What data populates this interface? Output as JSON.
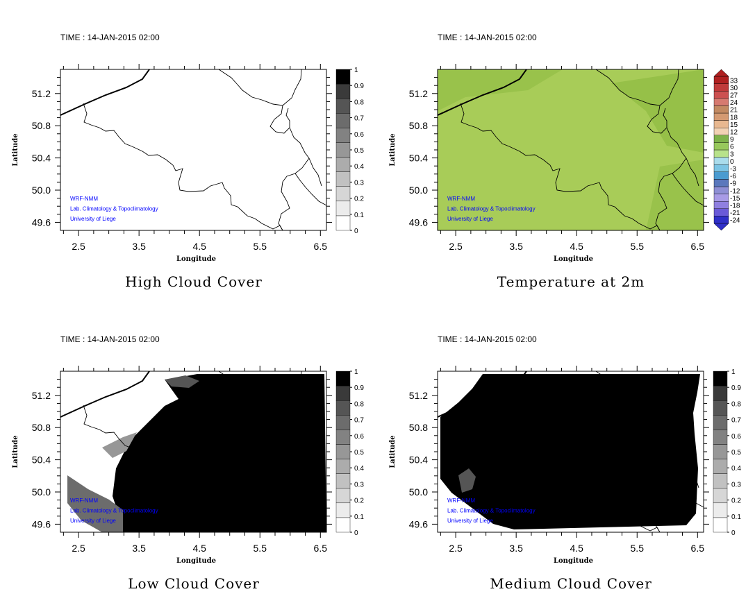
{
  "time_label": "TIME : 14-JAN-2015 02:00",
  "credits": [
    "WRF-NMM",
    "Lab. Climatology & Topoclimatology",
    "University of Liege"
  ],
  "colors": {
    "credit_text": "#0000ff",
    "temperature_fill": "#a8cc58",
    "temperature_fill_dark": "#8fbb42",
    "cloud_dark": "#000000"
  },
  "chart_data": [
    {
      "type": "heatmap",
      "title": "High Cloud Cover",
      "xlabel": "Longitude",
      "ylabel": "Latitude",
      "xlim": [
        2.2,
        6.6
      ],
      "ylim": [
        49.5,
        51.5
      ],
      "x_ticks": [
        "2.5",
        "3.5",
        "4.5",
        "5.5",
        "6.5"
      ],
      "y_ticks": [
        "49.6",
        "50.0",
        "50.4",
        "50.8",
        "51.2"
      ],
      "colorbar": {
        "labels": [
          "0",
          "0.1",
          "0.2",
          "0.3",
          "0.4",
          "0.5",
          "0.6",
          "0.7",
          "0.8",
          "0.9",
          "1"
        ],
        "colors": [
          "#ffffff",
          "#ececec",
          "#d6d6d6",
          "#c1c1c1",
          "#acacac",
          "#979797",
          "#828282",
          "#6c6c6c",
          "#555555",
          "#3a3a3a",
          "#000000"
        ]
      },
      "field": "none"
    },
    {
      "type": "heatmap",
      "title": "Temperature at 2m",
      "xlabel": "Longitude",
      "ylabel": "Latitude",
      "xlim": [
        2.2,
        6.6
      ],
      "ylim": [
        49.5,
        51.5
      ],
      "x_ticks": [
        "2.5",
        "3.5",
        "4.5",
        "5.5",
        "6.5"
      ],
      "y_ticks": [
        "49.6",
        "50.0",
        "50.4",
        "50.8",
        "51.2"
      ],
      "colorbar": {
        "labels": [
          "-24",
          "-21",
          "-18",
          "-15",
          "-12",
          "-9",
          "-6",
          "-3",
          "0",
          "3",
          "6",
          "9",
          "12",
          "15",
          "18",
          "21",
          "24",
          "27",
          "30",
          "33"
        ],
        "colors": [
          "#2f2fc8",
          "#6a5ad8",
          "#8f7fe0",
          "#a89be6",
          "#8e8fd4",
          "#5a78bc",
          "#4a9bd0",
          "#7cc4e4",
          "#aadcec",
          "#b8e28a",
          "#98c85c",
          "#7eb24a",
          "#f2d2b4",
          "#e8b890",
          "#d49a72",
          "#c28a62",
          "#d67a70",
          "#cc5050",
          "#c03a3a",
          "#b02020"
        ]
      },
      "field": "temperature"
    },
    {
      "type": "heatmap",
      "title": "Low Cloud Cover",
      "xlabel": "Longitude",
      "ylabel": "Latitude",
      "xlim": [
        2.2,
        6.6
      ],
      "ylim": [
        49.5,
        51.5
      ],
      "x_ticks": [
        "2.5",
        "3.5",
        "4.5",
        "5.5",
        "6.5"
      ],
      "y_ticks": [
        "49.6",
        "50.0",
        "50.4",
        "50.8",
        "51.2"
      ],
      "colorbar": {
        "labels": [
          "0",
          "0.1",
          "0.2",
          "0.3",
          "0.4",
          "0.5",
          "0.6",
          "0.7",
          "0.8",
          "0.9",
          "1"
        ],
        "colors": [
          "#ffffff",
          "#ececec",
          "#d6d6d6",
          "#c1c1c1",
          "#acacac",
          "#979797",
          "#828282",
          "#6c6c6c",
          "#555555",
          "#3a3a3a",
          "#000000"
        ]
      },
      "field": "low"
    },
    {
      "type": "heatmap",
      "title": "Medium Cloud Cover",
      "xlabel": "Longitude",
      "ylabel": "Latitude",
      "xlim": [
        2.2,
        6.6
      ],
      "ylim": [
        49.5,
        51.5
      ],
      "x_ticks": [
        "2.5",
        "3.5",
        "4.5",
        "5.5",
        "6.5"
      ],
      "y_ticks": [
        "49.6",
        "50.0",
        "50.4",
        "50.8",
        "51.2"
      ],
      "colorbar": {
        "labels": [
          "0",
          "0.1",
          "0.2",
          "0.3",
          "0.4",
          "0.5",
          "0.6",
          "0.7",
          "0.8",
          "0.9",
          "1"
        ],
        "colors": [
          "#ffffff",
          "#ececec",
          "#d6d6d6",
          "#c1c1c1",
          "#acacac",
          "#979797",
          "#828282",
          "#6c6c6c",
          "#555555",
          "#3a3a3a",
          "#000000"
        ]
      },
      "field": "medium"
    }
  ]
}
